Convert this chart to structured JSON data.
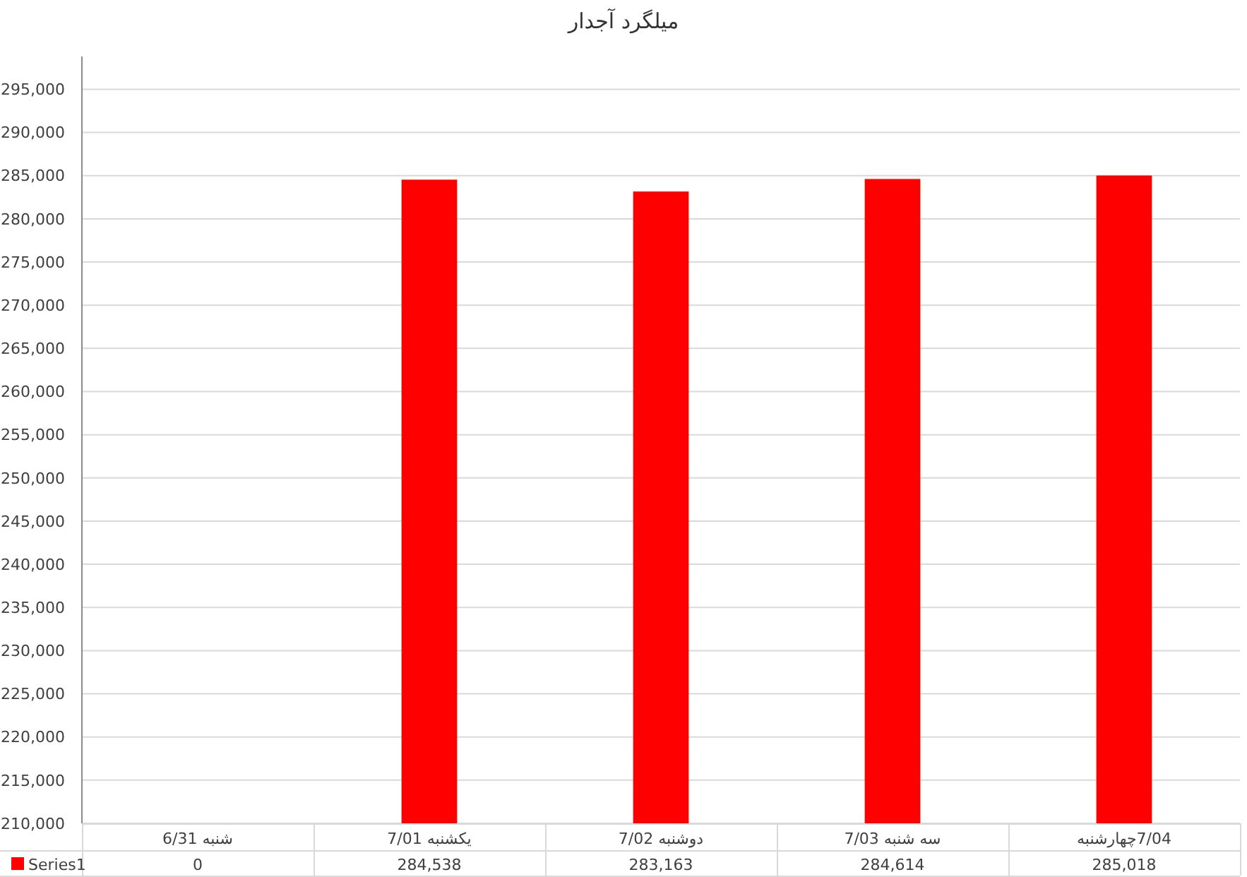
{
  "chart_data": {
    "type": "bar",
    "title": "میلگرد آجدار",
    "categories": [
      "شنبه 6/31",
      "یکشنبه 7/01",
      "دوشنبه 7/02",
      "سه شنبه 7/03",
      "7/04چهارشنبه"
    ],
    "series": [
      {
        "name": "Series1",
        "color": "#ff0000",
        "values": [
          null,
          284538,
          283163,
          284614,
          285018
        ],
        "value_labels": [
          "0",
          "284,538",
          "283,163",
          "284,614",
          "285,018"
        ]
      }
    ],
    "ylim": [
      210000,
      298800
    ],
    "yticks": [
      {
        "value": 210000,
        "label": "210,000"
      },
      {
        "value": 215000,
        "label": "215,000"
      },
      {
        "value": 220000,
        "label": "220,000"
      },
      {
        "value": 225000,
        "label": "225,000"
      },
      {
        "value": 230000,
        "label": "230,000"
      },
      {
        "value": 235000,
        "label": "235,000"
      },
      {
        "value": 240000,
        "label": "240,000"
      },
      {
        "value": 245000,
        "label": "245,000"
      },
      {
        "value": 250000,
        "label": "250,000"
      },
      {
        "value": 255000,
        "label": "255,000"
      },
      {
        "value": 260000,
        "label": "260,000"
      },
      {
        "value": 265000,
        "label": "265,000"
      },
      {
        "value": 270000,
        "label": "270,000"
      },
      {
        "value": 275000,
        "label": "275,000"
      },
      {
        "value": 280000,
        "label": "280,000"
      },
      {
        "value": 285000,
        "label": "285,000"
      },
      {
        "value": 290000,
        "label": "290,000"
      },
      {
        "value": 295000,
        "label": "295,000"
      }
    ],
    "grid": "y",
    "legend": "bottom"
  }
}
